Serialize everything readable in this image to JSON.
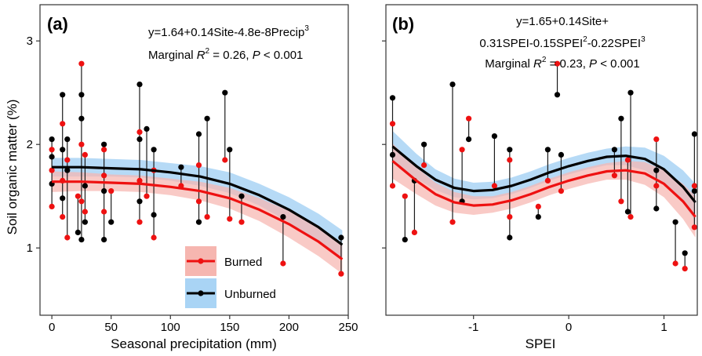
{
  "chart_data": [
    {
      "panel_label": "(a)",
      "type": "scatter",
      "xlabel": "Seasonal precipitation (mm)",
      "ylabel": "Soil organic matter (%)",
      "xlim": [
        -10,
        250
      ],
      "ylim": [
        0.35,
        3.35
      ],
      "xticks": [
        0,
        50,
        100,
        150,
        200,
        250
      ],
      "yticks": [
        1,
        2,
        3
      ],
      "grid": false,
      "legend_position": "bottom-center",
      "equation": {
        "prefix": "y=1.64+0.14Site-4.8e-8Precip",
        "exponent": "3"
      },
      "r2_text": {
        "lead": "Marginal ",
        "r": "R",
        "exp": "2",
        "mid": " =  0.26, ",
        "p": "P",
        "tail": " < 0.001"
      },
      "legend": [
        {
          "label": "Burned",
          "color": "#ee1111",
          "band": "#f6b6b0"
        },
        {
          "label": "Unburned",
          "color": "#000000",
          "band": "#a9d4f5"
        }
      ],
      "columns_x": [
        0,
        9,
        13,
        22,
        25,
        28,
        44,
        50,
        74,
        80,
        86,
        109,
        124,
        131,
        146,
        150,
        160,
        195,
        244
      ],
      "series": [
        {
          "name": "Burned",
          "color": "#ee1111",
          "band_color": "#f6b6b0",
          "fit": {
            "x": [
              0,
              25,
              50,
              75,
              100,
              125,
              150,
              175,
              200,
              225,
              245
            ],
            "y": [
              1.64,
              1.64,
              1.63,
              1.62,
              1.59,
              1.55,
              1.48,
              1.37,
              1.23,
              1.06,
              0.89
            ]
          },
          "band": {
            "lower": [
              1.54,
              1.55,
              1.55,
              1.54,
              1.51,
              1.46,
              1.38,
              1.26,
              1.1,
              0.92,
              0.75
            ],
            "upper": [
              1.74,
              1.73,
              1.71,
              1.7,
              1.67,
              1.64,
              1.58,
              1.48,
              1.36,
              1.2,
              1.03
            ]
          },
          "points": [
            [
              0,
              1.75
            ],
            [
              0,
              1.4
            ],
            [
              0,
              1.95
            ],
            [
              9,
              1.65
            ],
            [
              9,
              2.2
            ],
            [
              9,
              1.3
            ],
            [
              13,
              1.1
            ],
            [
              13,
              1.85
            ],
            [
              22,
              1.5
            ],
            [
              25,
              2.78
            ],
            [
              25,
              2.0
            ],
            [
              25,
              1.45
            ],
            [
              28,
              1.35
            ],
            [
              28,
              1.9
            ],
            [
              44,
              1.7
            ],
            [
              44,
              1.35
            ],
            [
              44,
              1.95
            ],
            [
              50,
              1.55
            ],
            [
              74,
              1.25
            ],
            [
              74,
              2.12
            ],
            [
              74,
              1.65
            ],
            [
              80,
              1.5
            ],
            [
              86,
              1.1
            ],
            [
              86,
              1.75
            ],
            [
              109,
              1.6
            ],
            [
              124,
              1.45
            ],
            [
              124,
              1.8
            ],
            [
              131,
              1.3
            ],
            [
              146,
              1.85
            ],
            [
              150,
              1.28
            ],
            [
              160,
              1.25
            ],
            [
              195,
              0.85
            ],
            [
              244,
              0.75
            ]
          ]
        },
        {
          "name": "Unburned",
          "color": "#000000",
          "band_color": "#a9d4f5",
          "fit": {
            "x": [
              0,
              25,
              50,
              75,
              100,
              125,
              150,
              175,
              200,
              225,
              245
            ],
            "y": [
              1.78,
              1.78,
              1.77,
              1.76,
              1.73,
              1.69,
              1.62,
              1.51,
              1.37,
              1.2,
              1.03
            ]
          },
          "band": {
            "lower": [
              1.69,
              1.69,
              1.69,
              1.68,
              1.65,
              1.6,
              1.53,
              1.41,
              1.25,
              1.06,
              0.89
            ],
            "upper": [
              1.87,
              1.87,
              1.86,
              1.85,
              1.82,
              1.79,
              1.73,
              1.62,
              1.49,
              1.33,
              1.17
            ]
          },
          "points": [
            [
              0,
              2.05
            ],
            [
              0,
              1.62
            ],
            [
              0,
              1.88
            ],
            [
              9,
              2.48
            ],
            [
              9,
              1.48
            ],
            [
              9,
              1.95
            ],
            [
              13,
              1.75
            ],
            [
              13,
              2.05
            ],
            [
              22,
              1.15
            ],
            [
              25,
              2.25
            ],
            [
              25,
              1.08
            ],
            [
              25,
              2.48
            ],
            [
              28,
              1.6
            ],
            [
              28,
              1.25
            ],
            [
              44,
              2.0
            ],
            [
              44,
              1.08
            ],
            [
              44,
              1.55
            ],
            [
              50,
              1.25
            ],
            [
              74,
              2.58
            ],
            [
              74,
              2.05
            ],
            [
              74,
              1.45
            ],
            [
              80,
              2.15
            ],
            [
              86,
              1.32
            ],
            [
              86,
              1.95
            ],
            [
              109,
              1.78
            ],
            [
              124,
              2.1
            ],
            [
              124,
              1.25
            ],
            [
              131,
              2.25
            ],
            [
              146,
              2.5
            ],
            [
              150,
              1.95
            ],
            [
              160,
              1.5
            ],
            [
              195,
              1.3
            ],
            [
              244,
              1.1
            ]
          ]
        }
      ]
    },
    {
      "panel_label": "(b)",
      "type": "scatter",
      "xlabel": "SPEI",
      "ylabel": "",
      "xlim": [
        -1.92,
        1.35
      ],
      "ylim": [
        0.35,
        3.35
      ],
      "xticks": [
        -1,
        0,
        1
      ],
      "yticks": [
        1,
        2,
        3
      ],
      "grid": false,
      "equation": {
        "line1": "y=1.65+0.14Site+",
        "line2_a": "0.31SPEI-0.15SPEI",
        "line2_e1": "2",
        "line2_b": "-0.22SPEI",
        "line2_e2": "3"
      },
      "r2_text": {
        "lead": "Marginal ",
        "r": "R",
        "exp": "2",
        "mid": " =  0.23, ",
        "p": "P",
        "tail": " < 0.001"
      },
      "columns_x": [
        -1.85,
        -1.72,
        -1.62,
        -1.52,
        -1.22,
        -1.12,
        -1.05,
        -0.78,
        -0.62,
        -0.32,
        -0.22,
        -0.12,
        -0.08,
        0.48,
        0.55,
        0.62,
        0.65,
        0.92,
        1.12,
        1.22,
        1.32
      ],
      "series": [
        {
          "name": "Burned",
          "color": "#ee1111",
          "band_color": "#f6b6b0",
          "fit": {
            "x": [
              -1.85,
              -1.6,
              -1.4,
              -1.2,
              -1.0,
              -0.8,
              -0.6,
              -0.4,
              -0.2,
              0.0,
              0.2,
              0.4,
              0.6,
              0.8,
              1.0,
              1.2,
              1.33
            ],
            "y": [
              1.84,
              1.65,
              1.52,
              1.44,
              1.41,
              1.42,
              1.46,
              1.52,
              1.59,
              1.65,
              1.7,
              1.74,
              1.75,
              1.72,
              1.62,
              1.45,
              1.3
            ]
          },
          "band": {
            "lower": [
              1.67,
              1.52,
              1.41,
              1.34,
              1.32,
              1.34,
              1.38,
              1.44,
              1.51,
              1.57,
              1.62,
              1.66,
              1.66,
              1.61,
              1.49,
              1.28,
              1.1
            ],
            "upper": [
              2.01,
              1.78,
              1.63,
              1.54,
              1.5,
              1.5,
              1.54,
              1.6,
              1.67,
              1.73,
              1.78,
              1.82,
              1.84,
              1.83,
              1.75,
              1.62,
              1.5
            ]
          },
          "points": [
            [
              -1.85,
              2.2
            ],
            [
              -1.85,
              1.6
            ],
            [
              -1.72,
              1.5
            ],
            [
              -1.62,
              1.15
            ],
            [
              -1.52,
              1.8
            ],
            [
              -1.22,
              1.25
            ],
            [
              -1.12,
              1.95
            ],
            [
              -1.05,
              2.25
            ],
            [
              -0.78,
              1.6
            ],
            [
              -0.62,
              1.3
            ],
            [
              -0.62,
              1.85
            ],
            [
              -0.32,
              1.4
            ],
            [
              -0.22,
              1.65
            ],
            [
              -0.12,
              2.78
            ],
            [
              -0.08,
              1.55
            ],
            [
              0.48,
              1.7
            ],
            [
              0.55,
              1.45
            ],
            [
              0.62,
              1.85
            ],
            [
              0.65,
              1.3
            ],
            [
              0.92,
              2.05
            ],
            [
              0.92,
              1.6
            ],
            [
              1.12,
              0.85
            ],
            [
              1.22,
              0.8
            ],
            [
              1.32,
              1.6
            ],
            [
              1.32,
              1.2
            ]
          ]
        },
        {
          "name": "Unburned",
          "color": "#000000",
          "band_color": "#a9d4f5",
          "fit": {
            "x": [
              -1.85,
              -1.6,
              -1.4,
              -1.2,
              -1.0,
              -0.8,
              -0.6,
              -0.4,
              -0.2,
              0.0,
              0.2,
              0.4,
              0.6,
              0.8,
              1.0,
              1.2,
              1.33
            ],
            "y": [
              1.98,
              1.79,
              1.66,
              1.58,
              1.55,
              1.56,
              1.6,
              1.66,
              1.73,
              1.79,
              1.84,
              1.88,
              1.89,
              1.86,
              1.76,
              1.59,
              1.44
            ]
          },
          "band": {
            "lower": [
              1.83,
              1.67,
              1.56,
              1.49,
              1.47,
              1.48,
              1.52,
              1.58,
              1.65,
              1.71,
              1.76,
              1.8,
              1.8,
              1.75,
              1.63,
              1.43,
              1.26
            ],
            "upper": [
              2.13,
              1.91,
              1.76,
              1.67,
              1.63,
              1.64,
              1.68,
              1.74,
              1.81,
              1.87,
              1.92,
              1.96,
              1.98,
              1.97,
              1.89,
              1.75,
              1.62
            ]
          },
          "points": [
            [
              -1.85,
              2.45
            ],
            [
              -1.85,
              1.9
            ],
            [
              -1.72,
              1.08
            ],
            [
              -1.62,
              1.65
            ],
            [
              -1.52,
              2.0
            ],
            [
              -1.22,
              2.58
            ],
            [
              -1.12,
              1.45
            ],
            [
              -1.05,
              2.05
            ],
            [
              -0.78,
              2.08
            ],
            [
              -0.62,
              1.95
            ],
            [
              -0.62,
              1.1
            ],
            [
              -0.32,
              1.3
            ],
            [
              -0.22,
              1.95
            ],
            [
              -0.12,
              2.48
            ],
            [
              -0.08,
              1.9
            ],
            [
              0.48,
              1.95
            ],
            [
              0.55,
              2.25
            ],
            [
              0.62,
              1.35
            ],
            [
              0.65,
              2.5
            ],
            [
              0.92,
              1.75
            ],
            [
              0.92,
              1.38
            ],
            [
              1.12,
              1.25
            ],
            [
              1.22,
              0.95
            ],
            [
              1.32,
              2.1
            ],
            [
              1.32,
              1.55
            ]
          ]
        }
      ]
    }
  ]
}
